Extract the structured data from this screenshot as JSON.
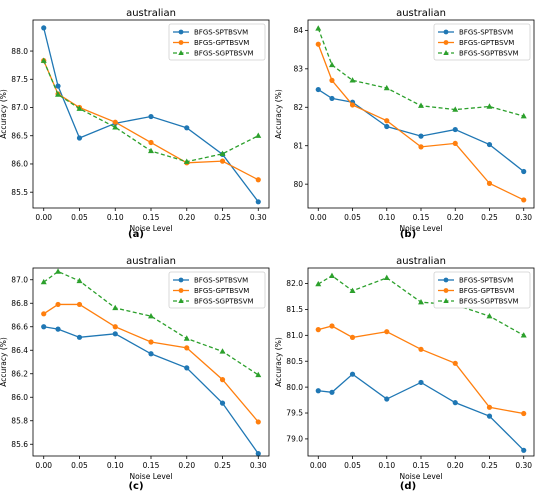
{
  "chart_data": [
    {
      "type": "line",
      "panel_label": "(a)",
      "title": "australian",
      "xlabel": "Noise Level",
      "ylabel": "Accuracy (%)",
      "x": [
        0.0,
        0.02,
        0.05,
        0.1,
        0.15,
        0.2,
        0.25,
        0.3
      ],
      "xticks": [
        "0.00",
        "0.05",
        "0.10",
        "0.15",
        "0.20",
        "0.25",
        "0.30"
      ],
      "yticks": [
        "85.5",
        "86.0",
        "86.5",
        "87.0",
        "87.5",
        "88.0"
      ],
      "xlim": [
        -0.015,
        0.315
      ],
      "ylim": [
        85.22,
        88.55
      ],
      "legend_position": "top-right",
      "series": [
        {
          "name": "BFGS-SPTBSVM",
          "values": [
            88.41,
            87.38,
            86.46,
            86.72,
            86.84,
            86.64,
            86.17,
            85.33
          ]
        },
        {
          "name": "BFGS-GPTBSVM",
          "values": [
            87.83,
            87.24,
            87.0,
            86.74,
            86.38,
            86.02,
            86.05,
            85.72
          ]
        },
        {
          "name": "BFGS-SGPTBSVM",
          "values": [
            87.83,
            87.23,
            86.98,
            86.65,
            86.23,
            86.04,
            86.18,
            86.5
          ]
        }
      ]
    },
    {
      "type": "line",
      "panel_label": "(b)",
      "title": "australian",
      "xlabel": "Noise Level",
      "ylabel": "Accuracy (%)",
      "x": [
        0.0,
        0.02,
        0.05,
        0.1,
        0.15,
        0.2,
        0.25,
        0.3
      ],
      "xticks": [
        "0.00",
        "0.05",
        "0.10",
        "0.15",
        "0.20",
        "0.25",
        "0.30"
      ],
      "yticks": [
        "80",
        "81",
        "82",
        "83",
        "84"
      ],
      "xlim": [
        -0.015,
        0.315
      ],
      "ylim": [
        79.38,
        84.27
      ],
      "legend_position": "top-right",
      "series": [
        {
          "name": "BFGS-SPTBSVM",
          "values": [
            82.46,
            82.23,
            82.13,
            81.5,
            81.25,
            81.42,
            81.03,
            80.33
          ]
        },
        {
          "name": "BFGS-GPTBSVM",
          "values": [
            83.64,
            82.7,
            82.06,
            81.65,
            80.97,
            81.06,
            80.02,
            79.59
          ]
        },
        {
          "name": "BFGS-SGPTBSVM",
          "values": [
            84.05,
            83.1,
            82.7,
            82.5,
            82.04,
            81.94,
            82.02,
            81.77
          ]
        }
      ]
    },
    {
      "type": "line",
      "panel_label": "(c)",
      "title": "australian",
      "xlabel": "Noise Level",
      "ylabel": "Accuracy (%)",
      "x": [
        0.0,
        0.02,
        0.05,
        0.1,
        0.15,
        0.2,
        0.25,
        0.3
      ],
      "xticks": [
        "0.00",
        "0.05",
        "0.10",
        "0.15",
        "0.20",
        "0.25",
        "0.30"
      ],
      "yticks": [
        "85.6",
        "85.8",
        "86.0",
        "86.2",
        "86.4",
        "86.6",
        "86.8",
        "87.0"
      ],
      "xlim": [
        -0.015,
        0.315
      ],
      "ylim": [
        85.5,
        87.1
      ],
      "legend_position": "top-right",
      "series": [
        {
          "name": "BFGS-SPTBSVM",
          "values": [
            86.6,
            86.58,
            86.51,
            86.54,
            86.37,
            86.25,
            85.95,
            85.52
          ]
        },
        {
          "name": "BFGS-GPTBSVM",
          "values": [
            86.71,
            86.79,
            86.79,
            86.6,
            86.47,
            86.42,
            86.15,
            85.79
          ]
        },
        {
          "name": "BFGS-SGPTBSVM",
          "values": [
            86.98,
            87.07,
            86.99,
            86.76,
            86.69,
            86.5,
            86.39,
            86.19
          ]
        }
      ]
    },
    {
      "type": "line",
      "panel_label": "(d)",
      "title": "australian",
      "xlabel": "Noise Level",
      "ylabel": "Accuracy (%)",
      "x": [
        0.0,
        0.02,
        0.05,
        0.1,
        0.15,
        0.2,
        0.25,
        0.3
      ],
      "xticks": [
        "0.00",
        "0.05",
        "0.10",
        "0.15",
        "0.20",
        "0.25",
        "0.30"
      ],
      "yticks": [
        "79.0",
        "79.5",
        "80.0",
        "80.5",
        "81.0",
        "81.5",
        "82.0"
      ],
      "xlim": [
        -0.015,
        0.315
      ],
      "ylim": [
        78.67,
        82.3
      ],
      "legend_position": "top-right",
      "series": [
        {
          "name": "BFGS-SPTBSVM",
          "values": [
            79.93,
            79.9,
            80.25,
            79.77,
            80.09,
            79.7,
            79.44,
            78.78
          ]
        },
        {
          "name": "BFGS-GPTBSVM",
          "values": [
            81.11,
            81.18,
            80.96,
            81.07,
            80.73,
            80.46,
            79.61,
            79.49
          ]
        },
        {
          "name": "BFGS-SGPTBSVM",
          "values": [
            81.99,
            82.15,
            81.86,
            82.11,
            81.64,
            81.59,
            81.37,
            81.0
          ]
        }
      ]
    }
  ],
  "colors": {
    "series": [
      "#1f77b4",
      "#ff7f0e",
      "#2ca02c"
    ],
    "markers": [
      "circle",
      "circle",
      "triangle"
    ],
    "line_styles": [
      "solid",
      "solid",
      "dashed"
    ]
  }
}
